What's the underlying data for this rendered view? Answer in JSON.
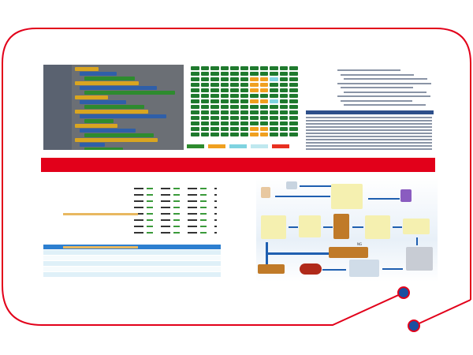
{
  "colors": {
    "frame": "#e2001a",
    "node": "#1a4fa0",
    "block_green": "#2e8b2e",
    "block_yellow": "#d9a520",
    "block_blue": "#2f5fa8",
    "grid_green": "#1f7a2e",
    "grid_orange": "#f0a020",
    "grid_cyan": "#7fd3e0",
    "table_header": "#2d7fd0"
  },
  "diagram": {
    "ng_label": "NG"
  },
  "icons": [
    "truck-icon",
    "forklift-icon",
    "barcode-icon",
    "scanner-icon",
    "worker-icon"
  ]
}
